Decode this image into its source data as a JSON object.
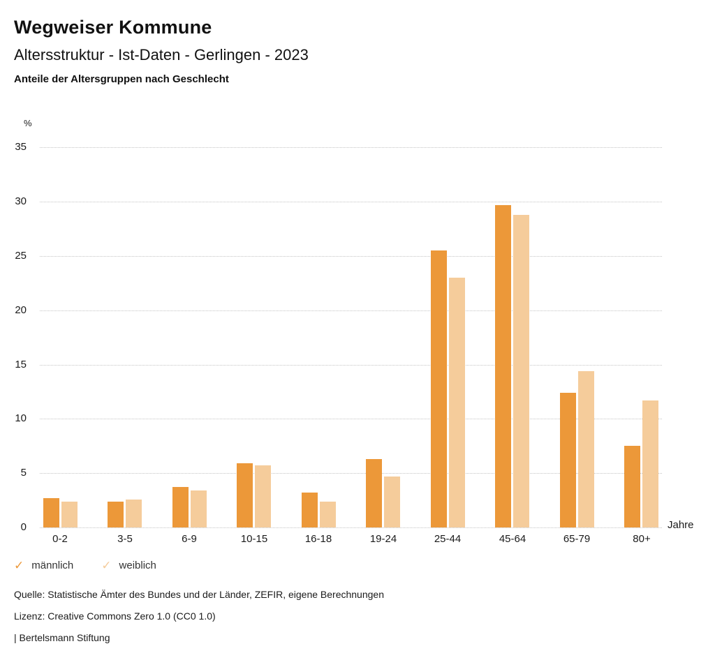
{
  "page": {
    "title": "Wegweiser Kommune",
    "subtitle": "Altersstruktur - Ist-Daten - Gerlingen - 2023",
    "caption": "Anteile der Altersgruppen nach Geschlecht"
  },
  "icons": {
    "check": "✓"
  },
  "chart_data": {
    "type": "bar",
    "title": "Anteile der Altersgruppen nach Geschlecht",
    "categories": [
      "0-2",
      "3-5",
      "6-9",
      "10-15",
      "16-18",
      "19-24",
      "25-44",
      "45-64",
      "65-79",
      "80+"
    ],
    "series": [
      {
        "name": "männlich",
        "color": "#EC9839",
        "values": [
          2.7,
          2.4,
          3.7,
          5.9,
          3.2,
          6.3,
          25.5,
          29.7,
          12.4,
          7.5
        ]
      },
      {
        "name": "weiblich",
        "color": "#F5CC9B",
        "values": [
          2.4,
          2.6,
          3.4,
          5.7,
          2.4,
          4.7,
          23.0,
          28.8,
          14.4,
          11.7
        ]
      }
    ],
    "yunit": "%",
    "xunit": "Jahre",
    "xlabel": "Jahre",
    "ylabel": "%",
    "ylim": [
      0,
      35
    ],
    "ytick_step": 5,
    "grid": "horizontal-dotted",
    "legend_position": "bottom-left"
  },
  "legend": [
    {
      "label": "männlich",
      "color": "#EC9839"
    },
    {
      "label": "weiblich",
      "color": "#F5CC9B"
    }
  ],
  "footer": {
    "source": "Quelle: Statistische Ämter des Bundes und der Länder, ZEFIR, eigene Berechnungen",
    "license": "Lizenz: Creative Commons Zero 1.0 (CC0 1.0)",
    "attribution": "| Bertelsmann Stiftung"
  }
}
